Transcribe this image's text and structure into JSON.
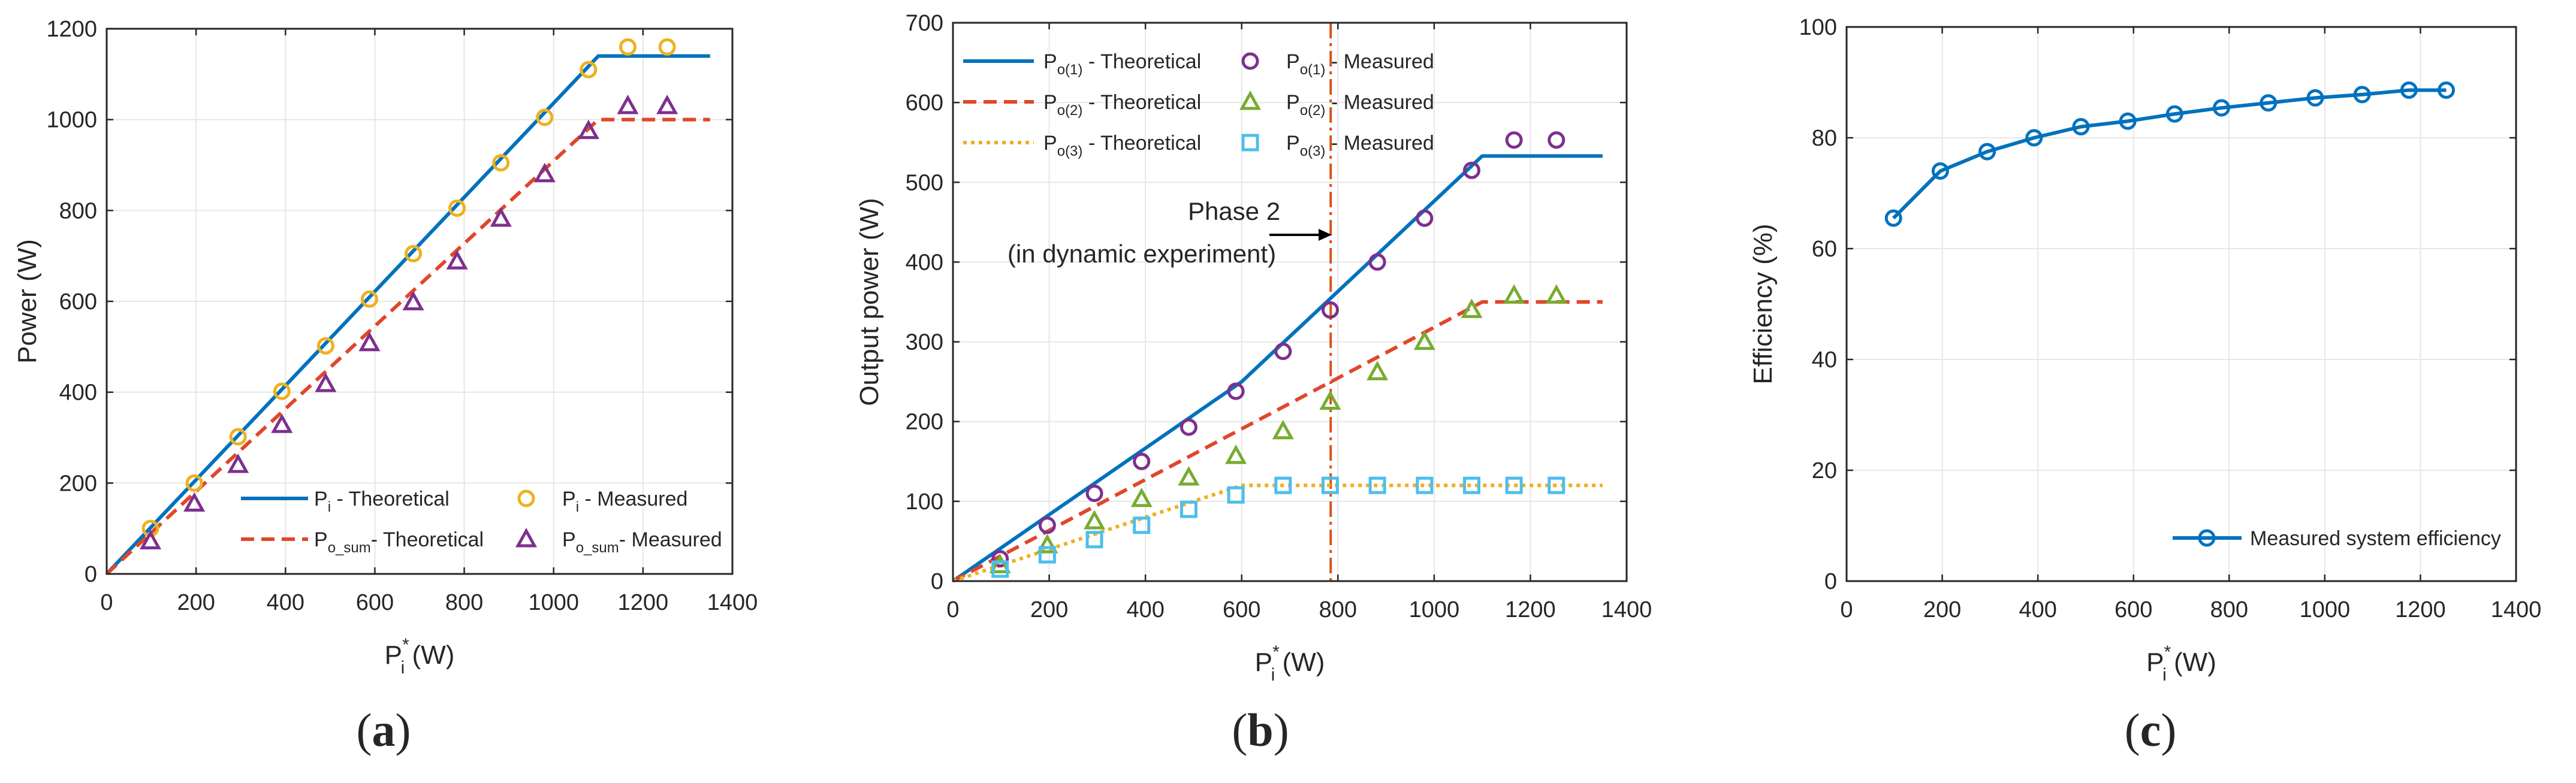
{
  "colors": {
    "blue": "#0072bd",
    "red": "#e0472a",
    "orange": "#edb120",
    "purple": "#7e2f8e",
    "green": "#77ac30",
    "cyan": "#4dbeee",
    "vline": "#d95319",
    "axis": "#262626",
    "grid": "#e6e6e6"
  },
  "chart_data": [
    {
      "type": "line",
      "panel_label": "(a)",
      "xlabel": {
        "main": "P",
        "sub": "i",
        "sup": "*",
        "unit": " (W)"
      },
      "ylabel": "Power (W)",
      "xlim": [
        0,
        1400
      ],
      "ylim": [
        0,
        1200
      ],
      "xticks": [
        "0",
        "200",
        "400",
        "600",
        "800",
        "1000",
        "1200",
        "1400"
      ],
      "yticks": [
        "0",
        "200",
        "400",
        "600",
        "800",
        "1000",
        "1200"
      ],
      "xtick_values": [
        0,
        200,
        400,
        600,
        800,
        1000,
        1200,
        1400
      ],
      "ytick_values": [
        0,
        200,
        400,
        600,
        800,
        1000,
        1200
      ],
      "grid": true,
      "legend_position": "bottom-right",
      "series": [
        {
          "name": "Pi - Theoretical",
          "label_main": "P",
          "label_sub": "i",
          "label_rest": " - Theoretical",
          "style": "solid",
          "color_key": "blue",
          "x": [
            0,
            1100,
            1350
          ],
          "y": [
            0,
            1140,
            1140
          ]
        },
        {
          "name": "Po_sum - Theoretical",
          "label_main": "P",
          "label_sub": "o_sum",
          "label_rest": "- Theoretical",
          "style": "dashed",
          "color_key": "red",
          "x": [
            0,
            1100,
            1350
          ],
          "y": [
            0,
            1000,
            1000
          ]
        },
        {
          "name": "Pi - Measured",
          "label_main": "P",
          "label_sub": "i",
          "label_rest": " - Measured",
          "marker": "circle",
          "color_key": "orange",
          "x": [
            98,
            196,
            294,
            392,
            490,
            588,
            686,
            784,
            882,
            980,
            1078,
            1166,
            1254
          ],
          "y": [
            100,
            200,
            302,
            402,
            502,
            605,
            705,
            805,
            905,
            1005,
            1110,
            1160,
            1160
          ]
        },
        {
          "name": "Po_sum - Measured",
          "label_main": "P",
          "label_sub": "o_sum",
          "label_rest": "- Measured",
          "marker": "triangle",
          "color_key": "purple",
          "x": [
            98,
            196,
            294,
            392,
            490,
            588,
            686,
            784,
            882,
            980,
            1078,
            1166,
            1254
          ],
          "y": [
            72,
            155,
            240,
            328,
            418,
            508,
            598,
            688,
            782,
            880,
            975,
            1030,
            1030
          ]
        }
      ]
    },
    {
      "type": "line",
      "panel_label": "(b)",
      "xlabel": {
        "main": "P",
        "sub": "i",
        "sup": "*",
        "unit": " (W)"
      },
      "ylabel": "Output power (W)",
      "xlim": [
        0,
        1400
      ],
      "ylim": [
        0,
        700
      ],
      "xticks": [
        "0",
        "200",
        "400",
        "600",
        "800",
        "1000",
        "1200",
        "1400"
      ],
      "yticks": [
        "0",
        "100",
        "200",
        "300",
        "400",
        "500",
        "600",
        "700"
      ],
      "xtick_values": [
        0,
        200,
        400,
        600,
        800,
        1000,
        1200,
        1400
      ],
      "ytick_values": [
        0,
        100,
        200,
        300,
        400,
        500,
        600,
        700
      ],
      "grid": true,
      "legend_position": "top-left",
      "vertical_line_x": 785,
      "annotation": {
        "line1": "Phase 2",
        "line2": "(in dynamic experiment)"
      },
      "series": [
        {
          "name": "Po(1) - Theoretical",
          "label_main": "P",
          "label_sub": "o(1)",
          "label_rest": " - Theoretical",
          "style": "solid",
          "color_key": "blue",
          "x": [
            0,
            600,
            1100,
            1350
          ],
          "y": [
            0,
            250,
            533,
            533
          ]
        },
        {
          "name": "Po(1) - Measured",
          "label_main": "P",
          "label_sub": "o(1)",
          "label_rest": " - Measured",
          "marker": "circle",
          "color_key": "purple",
          "x": [
            98,
            196,
            294,
            392,
            490,
            588,
            686,
            784,
            882,
            980,
            1078,
            1166,
            1254
          ],
          "y": [
            28,
            70,
            110,
            150,
            193,
            238,
            288,
            340,
            400,
            455,
            515,
            553,
            553
          ]
        },
        {
          "name": "Po(2) - Theoretical",
          "label_main": "P",
          "label_sub": "o(2)",
          "label_rest": " - Theoretical",
          "style": "dashed",
          "color_key": "red",
          "x": [
            0,
            1100,
            1350
          ],
          "y": [
            0,
            350,
            350
          ]
        },
        {
          "name": "Po(2) - Measured",
          "label_main": "P",
          "label_sub": "o(2)",
          "label_rest": " - Measured",
          "marker": "triangle",
          "color_key": "green",
          "x": [
            98,
            196,
            294,
            392,
            490,
            588,
            686,
            784,
            882,
            980,
            1078,
            1166,
            1254
          ],
          "y": [
            20,
            45,
            75,
            103,
            130,
            157,
            188,
            225,
            262,
            300,
            340,
            358,
            358
          ]
        },
        {
          "name": "Po(3) - Theoretical",
          "label_main": "P",
          "label_sub": "o(3)",
          "label_rest": " - Theoretical",
          "style": "dotted",
          "color_key": "orange",
          "x": [
            0,
            600,
            1350
          ],
          "y": [
            0,
            120,
            120
          ]
        },
        {
          "name": "Po(3) - Measured",
          "label_main": "P",
          "label_sub": "o(3)",
          "label_rest": " - Measured",
          "marker": "square",
          "color_key": "cyan",
          "x": [
            98,
            196,
            294,
            392,
            490,
            588,
            686,
            784,
            882,
            980,
            1078,
            1166,
            1254
          ],
          "y": [
            15,
            33,
            52,
            70,
            90,
            108,
            120,
            120,
            120,
            120,
            120,
            120,
            120
          ]
        }
      ]
    },
    {
      "type": "line",
      "panel_label": "(c)",
      "xlabel": {
        "main": "P",
        "sub": "i",
        "sup": "*",
        "unit": " (W)"
      },
      "ylabel": "Efficiency (%)",
      "xlim": [
        0,
        1400
      ],
      "ylim": [
        0,
        100
      ],
      "xticks": [
        "0",
        "200",
        "400",
        "600",
        "800",
        "1000",
        "1200",
        "1400"
      ],
      "yticks": [
        "0",
        "20",
        "40",
        "60",
        "80",
        "100"
      ],
      "xtick_values": [
        0,
        200,
        400,
        600,
        800,
        1000,
        1200,
        1400
      ],
      "ytick_values": [
        0,
        20,
        40,
        60,
        80,
        100
      ],
      "grid": true,
      "legend_position": "bottom-right",
      "series": [
        {
          "name": "Measured system efficiency",
          "label_main": "Measured system efficiency",
          "label_sub": "",
          "label_rest": "",
          "style": "solid",
          "marker": "circle",
          "color_key": "blue",
          "x": [
            98,
            196,
            294,
            392,
            490,
            588,
            686,
            784,
            882,
            980,
            1078,
            1176,
            1254
          ],
          "y": [
            65.5,
            74,
            77.5,
            80,
            82,
            83,
            84.3,
            85.4,
            86.3,
            87.2,
            87.8,
            88.6,
            88.6
          ]
        }
      ]
    }
  ]
}
